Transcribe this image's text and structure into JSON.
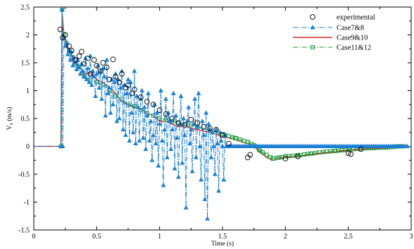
{
  "chart_data": {
    "type": "line",
    "xlabel": "Time (s)",
    "ylabel": "V",
    "ylabel_sub": "x",
    "ylabel_unit": " (m/s)",
    "xlim": [
      0,
      3
    ],
    "ylim": [
      -1.5,
      2.5
    ],
    "xticks": [
      0,
      0.5,
      1,
      1.5,
      2,
      2.5,
      3
    ],
    "xtick_labels": [
      "0",
      "0.5",
      "1",
      "1.5",
      "2",
      "2.5",
      "3"
    ],
    "yticks": [
      -1.5,
      -1,
      -0.5,
      0,
      0.5,
      1,
      1.5,
      2,
      2.5
    ],
    "ytick_labels": [
      "-1.5",
      "-1",
      "-0.5",
      "0",
      "0.5",
      "1",
      "1.5",
      "2",
      "2.5"
    ],
    "grid": false,
    "legend_position": "top-right",
    "series": [
      {
        "name": "experimental",
        "style": "markers",
        "marker": "circle",
        "color": "#000000",
        "x": [
          0.21,
          0.23,
          0.25,
          0.28,
          0.3,
          0.33,
          0.36,
          0.38,
          0.4,
          0.43,
          0.45,
          0.48,
          0.5,
          0.53,
          0.55,
          0.58,
          0.6,
          0.63,
          0.65,
          0.68,
          0.7,
          0.73,
          0.75,
          0.78,
          0.8,
          0.85,
          0.9,
          0.95,
          1.0,
          1.05,
          1.1,
          1.15,
          1.2,
          1.25,
          1.3,
          1.35,
          1.4,
          1.45,
          1.5,
          1.55,
          1.7,
          1.72,
          2.0,
          2.1,
          2.5,
          2.52,
          2.6
        ],
        "y": [
          2.1,
          1.95,
          2.0,
          1.8,
          1.72,
          1.55,
          1.62,
          1.7,
          1.48,
          1.58,
          1.3,
          1.55,
          1.45,
          1.35,
          1.5,
          1.42,
          1.2,
          1.56,
          1.25,
          1.15,
          1.3,
          1.05,
          1.1,
          0.95,
          1.02,
          0.88,
          0.8,
          0.75,
          0.65,
          0.58,
          0.5,
          0.42,
          0.38,
          0.48,
          0.42,
          0.35,
          0.32,
          0.3,
          0.2,
          0.05,
          -0.2,
          -0.15,
          -0.22,
          -0.18,
          -0.12,
          -0.14,
          -0.05
        ]
      },
      {
        "name": "Case7&8",
        "style": "dashdot-triangle",
        "color": "#1a7fd6",
        "x": [
          0,
          0.22,
          0.225,
          0.23,
          0.24,
          0.25,
          0.26,
          0.27,
          0.28,
          0.29,
          0.3,
          0.31,
          0.32,
          0.33,
          0.34,
          0.35,
          0.36,
          0.37,
          0.38,
          0.39,
          0.4,
          0.41,
          0.42,
          0.43,
          0.44,
          0.45,
          0.46,
          0.47,
          0.48,
          0.49,
          0.5,
          0.51,
          0.52,
          0.53,
          0.54,
          0.55,
          0.56,
          0.57,
          0.58,
          0.59,
          0.6,
          0.61,
          0.62,
          0.63,
          0.64,
          0.65,
          0.66,
          0.67,
          0.68,
          0.69,
          0.7,
          0.71,
          0.72,
          0.73,
          0.74,
          0.75,
          0.76,
          0.77,
          0.78,
          0.79,
          0.8,
          0.81,
          0.82,
          0.83,
          0.84,
          0.85,
          0.86,
          0.87,
          0.88,
          0.89,
          0.9,
          0.91,
          0.92,
          0.93,
          0.94,
          0.95,
          0.96,
          0.97,
          0.98,
          0.99,
          1.0,
          1.01,
          1.02,
          1.03,
          1.04,
          1.05,
          1.06,
          1.07,
          1.08,
          1.09,
          1.1,
          1.11,
          1.12,
          1.13,
          1.14,
          1.15,
          1.16,
          1.17,
          1.18,
          1.19,
          1.2,
          1.21,
          1.22,
          1.23,
          1.24,
          1.25,
          1.26,
          1.27,
          1.28,
          1.29,
          1.3,
          1.31,
          1.32,
          1.33,
          1.34,
          1.35,
          1.36,
          1.37,
          1.38,
          1.39,
          1.4,
          1.41,
          1.42,
          1.43,
          1.44,
          1.45,
          1.46,
          1.47,
          1.48,
          1.49,
          1.5,
          1.51,
          1.52,
          1.53,
          1.55,
          3.0
        ],
        "y": [
          0,
          0,
          2.45,
          0.0,
          1.95,
          1.8,
          1.85,
          1.65,
          1.72,
          1.55,
          1.7,
          1.45,
          1.6,
          1.5,
          1.38,
          1.55,
          1.42,
          1.3,
          1.48,
          1.35,
          1.25,
          1.58,
          1.2,
          1.4,
          1.15,
          1.62,
          1.1,
          1.35,
          1.25,
          0.9,
          1.3,
          1.45,
          1.05,
          1.35,
          0.85,
          1.4,
          1.25,
          0.55,
          1.55,
          0.95,
          1.05,
          0.6,
          1.2,
          0.75,
          1.15,
          1.3,
          0.45,
          1.2,
          0.5,
          1.05,
          1.35,
          0.3,
          1.1,
          0.2,
          0.95,
          1.2,
          0.1,
          1.15,
          0.6,
          0.25,
          1.35,
          0.05,
          0.9,
          0.7,
          0.1,
          0.85,
          1.0,
          0.15,
          0.7,
          -0.05,
          0.55,
          0.95,
          0.1,
          0.45,
          -0.25,
          0.2,
          0.75,
          0.05,
          0.6,
          -0.35,
          0.4,
          1.0,
          0.1,
          -0.7,
          0.3,
          0.85,
          -0.2,
          0.6,
          0.45,
          -0.05,
          0.3,
          0.95,
          -0.4,
          0.55,
          0.15,
          -0.55,
          0.4,
          0.9,
          -0.3,
          0.5,
          0.2,
          -1.1,
          0.45,
          0.7,
          0.05,
          0.3,
          -0.45,
          0.4,
          0.85,
          -0.2,
          0.35,
          0.95,
          0.0,
          -0.6,
          0.45,
          0.2,
          -0.95,
          0.6,
          -1.3,
          0.4,
          0.3,
          -0.2,
          0.25,
          0.0,
          -0.5,
          0.3,
          0.05,
          -0.8,
          0.25,
          0.1,
          0.0,
          -0.6,
          0.2,
          0.0,
          0.0,
          0.0
        ]
      },
      {
        "name": "Case9&10",
        "style": "solid",
        "color": "#cc0000",
        "x": [
          0,
          0.215,
          0.225,
          0.24,
          0.26,
          0.28,
          0.3,
          0.33,
          0.36,
          0.4,
          0.45,
          0.5,
          0.55,
          0.6,
          0.65,
          0.7,
          0.75,
          0.8,
          0.85,
          0.9,
          0.95,
          1.0,
          1.05,
          1.1,
          1.15,
          1.2,
          1.25,
          1.3,
          1.4,
          1.5,
          1.6,
          1.7,
          1.75,
          1.8,
          1.85,
          1.9,
          1.95,
          2.0,
          2.1,
          2.2,
          2.3,
          2.4,
          2.5,
          2.6,
          2.7,
          2.8,
          2.9,
          3.0
        ],
        "y": [
          0,
          0,
          2.4,
          1.95,
          1.9,
          1.7,
          1.65,
          1.5,
          1.45,
          1.3,
          1.32,
          1.2,
          1.15,
          1.05,
          0.95,
          0.8,
          0.75,
          0.7,
          0.68,
          0.6,
          0.55,
          0.45,
          0.45,
          0.4,
          0.35,
          0.38,
          0.32,
          0.3,
          0.25,
          0.18,
          0.12,
          0.05,
          0.0,
          -0.1,
          -0.2,
          -0.25,
          -0.22,
          -0.2,
          -0.18,
          -0.15,
          -0.12,
          -0.1,
          -0.07,
          -0.05,
          -0.04,
          -0.03,
          -0.02,
          0.0
        ]
      },
      {
        "name": "Case11&12",
        "style": "dashdot-square",
        "color": "#1f9a3a",
        "x": [
          0,
          0.215,
          0.225,
          0.24,
          0.26,
          0.28,
          0.3,
          0.33,
          0.36,
          0.4,
          0.45,
          0.5,
          0.55,
          0.6,
          0.65,
          0.7,
          0.75,
          0.8,
          0.85,
          0.9,
          0.95,
          1.0,
          1.05,
          1.1,
          1.15,
          1.2,
          1.25,
          1.3,
          1.4,
          1.5,
          1.6,
          1.7,
          1.75,
          1.8,
          1.85,
          1.9,
          1.95,
          2.0,
          2.1,
          2.2,
          2.3,
          2.4,
          2.5,
          2.6,
          2.7,
          2.8,
          2.9,
          3.0
        ],
        "y": [
          0,
          0,
          2.45,
          2.0,
          1.85,
          1.7,
          1.6,
          1.48,
          1.42,
          1.25,
          1.2,
          1.15,
          1.1,
          1.0,
          0.9,
          0.85,
          0.75,
          0.72,
          0.65,
          0.6,
          0.55,
          0.5,
          0.48,
          0.45,
          0.42,
          0.4,
          0.38,
          0.35,
          0.28,
          0.22,
          0.15,
          0.08,
          0.02,
          -0.08,
          -0.15,
          -0.22,
          -0.2,
          -0.18,
          -0.16,
          -0.13,
          -0.1,
          -0.08,
          -0.06,
          -0.04,
          -0.03,
          -0.02,
          0.0,
          0.0
        ]
      }
    ]
  }
}
